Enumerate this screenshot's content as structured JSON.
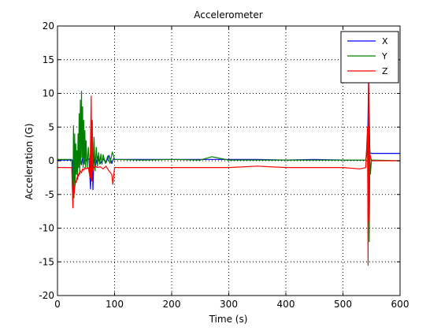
{
  "chart_data": {
    "type": "line",
    "title": "Accelerometer",
    "xlabel": "Time (s)",
    "ylabel": "Acceleration (G)",
    "xlim": [
      0,
      600
    ],
    "ylim": [
      -20,
      20
    ],
    "xticks": [
      0,
      100,
      200,
      300,
      400,
      500,
      600
    ],
    "yticks": [
      -20,
      -15,
      -10,
      -5,
      0,
      5,
      10,
      15,
      20
    ],
    "grid": true,
    "grid_style": "dotted",
    "legend_position": "top-right",
    "series": [
      {
        "name": "X",
        "color": "#0000ff",
        "x": [
          0,
          26,
          28,
          30,
          32,
          34,
          36,
          38,
          40,
          42,
          44,
          46,
          48,
          50,
          55,
          58,
          60,
          62,
          64,
          66,
          70,
          75,
          80,
          85,
          90,
          95,
          98,
          100,
          150,
          200,
          250,
          300,
          350,
          400,
          450,
          500,
          540,
          543,
          545,
          547,
          550,
          600
        ],
        "y": [
          0.1,
          0.1,
          -3,
          3,
          -1.5,
          1.5,
          -1,
          1,
          0.5,
          -0.6,
          0.4,
          -0.3,
          0.2,
          0.1,
          0.3,
          -4.2,
          5.5,
          -4.3,
          1.5,
          -1,
          0.6,
          -0.4,
          0.3,
          -0.3,
          0.8,
          -0.4,
          0.3,
          0.2,
          0.2,
          0.2,
          0.2,
          0.2,
          0.2,
          0.1,
          0.2,
          0.1,
          0.1,
          1.5,
          12.5,
          1.2,
          1.1,
          1.1
        ]
      },
      {
        "name": "Y",
        "color": "#008000",
        "x": [
          0,
          25,
          27,
          28,
          29,
          30,
          31,
          32,
          33,
          34,
          35,
          36,
          37,
          38,
          39,
          40,
          41,
          42,
          43,
          44,
          45,
          46,
          47,
          48,
          49,
          50,
          52,
          54,
          56,
          58,
          60,
          62,
          64,
          66,
          68,
          70,
          72,
          74,
          76,
          78,
          80,
          84,
          88,
          92,
          96,
          100,
          150,
          200,
          250,
          270,
          300,
          350,
          400,
          450,
          500,
          540,
          543,
          544,
          545,
          546,
          547,
          548,
          550,
          600
        ],
        "y": [
          0.2,
          0.2,
          -6.5,
          5.2,
          -5.5,
          4,
          -3.5,
          2.5,
          -2,
          1.5,
          -2.5,
          4,
          -1,
          7,
          -2,
          9,
          -0.5,
          10.3,
          0.5,
          8,
          -1,
          6,
          -0.5,
          4.5,
          -1,
          3,
          -1,
          2,
          -0.5,
          1,
          5.5,
          -1.5,
          3.5,
          -1.5,
          2,
          -0.8,
          1.2,
          -0.5,
          1,
          -0.5,
          0.9,
          -0.4,
          0.7,
          -0.4,
          1.3,
          0.2,
          0.1,
          0.2,
          0.1,
          0.6,
          0.1,
          0.1,
          0.1,
          0.1,
          0.1,
          0.1,
          3,
          -7,
          11,
          -12,
          2,
          -2,
          0.1,
          0
        ]
      },
      {
        "name": "Z",
        "color": "#ff0000",
        "x": [
          0,
          25,
          27,
          28,
          29,
          30,
          31,
          32,
          33,
          34,
          35,
          36,
          37,
          38,
          40,
          42,
          44,
          46,
          48,
          50,
          54,
          57,
          59,
          60,
          61,
          62,
          64,
          66,
          70,
          75,
          80,
          85,
          90,
          95,
          97,
          100,
          150,
          200,
          250,
          300,
          350,
          400,
          450,
          500,
          530,
          540,
          543,
          544,
          545,
          546,
          547,
          550,
          600
        ],
        "y": [
          -1,
          -1,
          -7,
          -3,
          -5,
          -4,
          -3.5,
          -3,
          -3.2,
          -2.5,
          -2.8,
          -2,
          -2.3,
          -1.8,
          -1.5,
          -1.8,
          -1.2,
          -1.4,
          -1,
          -1.2,
          -1,
          -2.5,
          9.6,
          -3,
          6,
          -1.5,
          -1,
          -0.8,
          -1,
          -0.9,
          -1.2,
          -0.8,
          -1.5,
          -2,
          -3.5,
          -1,
          -1,
          -1,
          -1,
          -1,
          -0.8,
          -1,
          -1,
          -1,
          -1.2,
          -1,
          5,
          -15.5,
          15,
          -9,
          1,
          0,
          0
        ]
      }
    ]
  }
}
